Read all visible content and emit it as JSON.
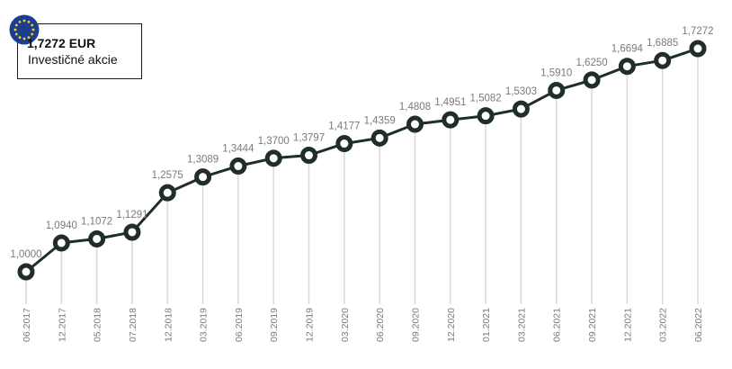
{
  "info_box": {
    "value": "1,7272 EUR",
    "label": "Investičné akcie",
    "flag_icon": "eu-flag-icon"
  },
  "colors": {
    "line": "#1f2e2a",
    "marker_fill": "#ffffff",
    "marker_stroke": "#1f2e2a",
    "drop_line": "#d9d9d9",
    "label": "#7a7a7a",
    "flag_blue": "#1d3e8f",
    "flag_star": "#f7d11e"
  },
  "chart_data": {
    "type": "line",
    "title": "",
    "xlabel": "",
    "ylabel": "",
    "grid": false,
    "legend": false,
    "categories": [
      "06.2017",
      "12.2017",
      "05.2018",
      "07.2018",
      "12.2018",
      "03.2019",
      "06.2019",
      "09.2019",
      "12.2019",
      "03.2020",
      "06.2020",
      "09.2020",
      "12.2020",
      "01.2021",
      "03.2021",
      "06.2021",
      "09.2021",
      "12.2021",
      "03.2022",
      "06.2022"
    ],
    "values": [
      1.0,
      1.094,
      1.1072,
      1.1291,
      1.2575,
      1.3089,
      1.3444,
      1.37,
      1.3797,
      1.4177,
      1.4359,
      1.4808,
      1.4951,
      1.5082,
      1.5303,
      1.591,
      1.625,
      1.6694,
      1.6885,
      1.7272
    ],
    "value_labels": [
      "1,0000",
      "1,0940",
      "1,1072",
      "1,1291",
      "1,2575",
      "1,3089",
      "1,3444",
      "1,3700",
      "1,3797",
      "1,4177",
      "1,4359",
      "1,4808",
      "1,4951",
      "1,5082",
      "1,5303",
      "1,5910",
      "1,6250",
      "1,6694",
      "1,6885",
      "1,7272"
    ]
  }
}
